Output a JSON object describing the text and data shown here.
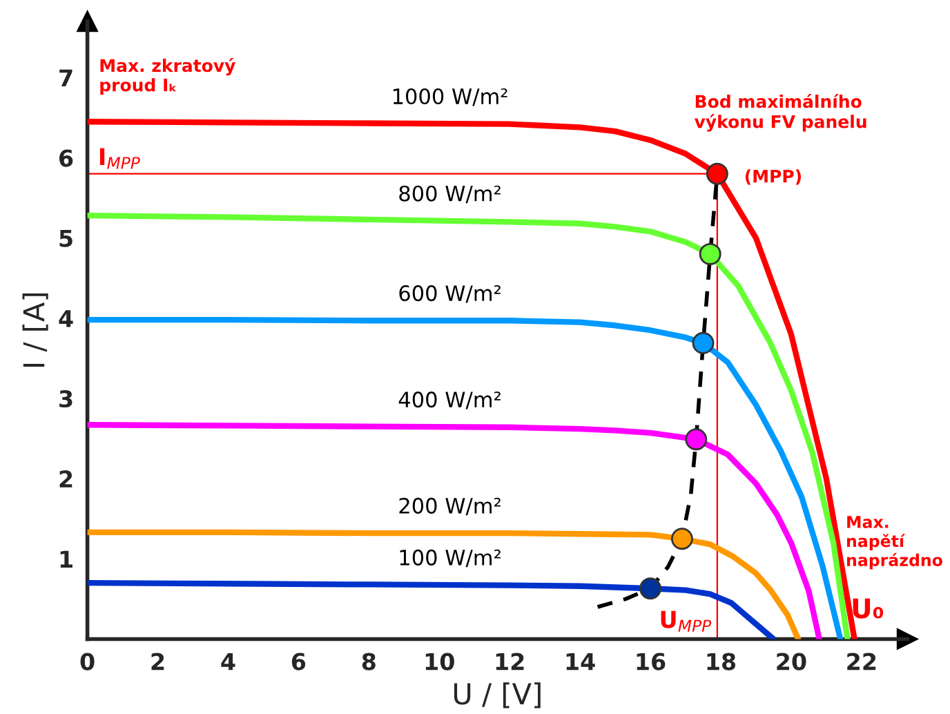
{
  "chart_data": {
    "type": "line",
    "xlabel": "U / [V]",
    "ylabel": "I / [A]",
    "xlim": [
      0,
      23.3
    ],
    "ylim": [
      0,
      7.7
    ],
    "xticks": [
      0,
      2,
      4,
      6,
      8,
      10,
      12,
      14,
      16,
      18,
      20,
      22
    ],
    "yticks": [
      1,
      2,
      3,
      4,
      5,
      6,
      7
    ],
    "grid": false,
    "legend": false,
    "marker": "none",
    "line_style": "solid",
    "series": [
      {
        "name": "1000 W/m²",
        "color": "#ff0000",
        "x": [
          0,
          4,
          8,
          12,
          14,
          15,
          16,
          17,
          17.9,
          19,
          20,
          21,
          21.8
        ],
        "values": [
          6.45,
          6.44,
          6.43,
          6.42,
          6.38,
          6.33,
          6.22,
          6.05,
          5.8,
          5.0,
          3.8,
          2.0,
          0
        ]
      },
      {
        "name": "800 W/m²",
        "color": "#66ff33",
        "x": [
          0,
          4,
          8,
          12,
          14,
          15,
          16,
          17,
          17.7,
          18.5,
          19.4,
          20,
          20.6,
          21.2,
          21.6
        ],
        "values": [
          5.28,
          5.26,
          5.23,
          5.2,
          5.18,
          5.14,
          5.08,
          4.95,
          4.8,
          4.4,
          3.7,
          3.1,
          2.33,
          1.2,
          0
        ]
      },
      {
        "name": "600 W/m²",
        "color": "#0099ff",
        "x": [
          0,
          4,
          8,
          12,
          14,
          15,
          16,
          17,
          17.5,
          18.2,
          19,
          19.7,
          20.3,
          20.9,
          21.4
        ],
        "values": [
          3.98,
          3.98,
          3.97,
          3.97,
          3.95,
          3.91,
          3.85,
          3.76,
          3.69,
          3.45,
          2.92,
          2.35,
          1.77,
          0.9,
          0
        ]
      },
      {
        "name": "400 W/m²",
        "color": "#ff00ff",
        "x": [
          0,
          4,
          8,
          12,
          14,
          15,
          16,
          17.3,
          18.2,
          19,
          19.6,
          20,
          20.5,
          20.8
        ],
        "values": [
          2.67,
          2.66,
          2.65,
          2.64,
          2.62,
          2.6,
          2.57,
          2.49,
          2.3,
          1.94,
          1.55,
          1.2,
          0.6,
          0
        ]
      },
      {
        "name": "200 W/m²",
        "color": "#ff9900",
        "x": [
          0,
          4,
          8,
          12,
          14,
          16,
          16.9,
          17.7,
          18.35,
          19,
          19.4,
          19.9,
          20.2
        ],
        "values": [
          1.33,
          1.33,
          1.32,
          1.32,
          1.31,
          1.3,
          1.25,
          1.18,
          1.03,
          0.82,
          0.62,
          0.3,
          0
        ]
      },
      {
        "name": "100 W/m²",
        "color": "#0033cc",
        "x": [
          0,
          4,
          8,
          12,
          14,
          16,
          17,
          17.7,
          18.3,
          18.7,
          19.1,
          19.5
        ],
        "values": [
          0.7,
          0.69,
          0.68,
          0.67,
          0.66,
          0.63,
          0.61,
          0.56,
          0.45,
          0.3,
          0.15,
          0
        ]
      },
      {
        "color": "#000000",
        "line_style": "dashed",
        "x": [
          14.5,
          15.3,
          16,
          16.5,
          16.9,
          17.15,
          17.3,
          17.5,
          17.7,
          17.9
        ],
        "values": [
          0.4,
          0.5,
          0.63,
          0.9,
          1.25,
          1.8,
          2.49,
          3.69,
          4.8,
          5.8
        ]
      },
      {
        "type": "scatter",
        "marker": "circle",
        "x": [
          17.9,
          17.7,
          17.5,
          17.3,
          16.9,
          16.0
        ],
        "values": [
          5.8,
          4.8,
          3.69,
          2.49,
          1.25,
          0.63
        ],
        "colors": [
          "#ff0000",
          "#66ff33",
          "#0099ff",
          "#ff00ff",
          "#ff9900",
          "#003399"
        ]
      }
    ],
    "ref_lines": [
      {
        "axis": "y",
        "value": 5.8,
        "label": "I$_{MPP}$",
        "color": "#ff0000"
      },
      {
        "axis": "x",
        "value": 17.9,
        "label": "U$_{MPP}$",
        "color": "#ff0000"
      }
    ],
    "annotations": [
      {
        "text": "Max. zkratový\nproud Iₖ",
        "x": 0,
        "y": 6.45
      },
      {
        "text": "Bod maximálního\nvýkonu FV panelu",
        "x": 17.9,
        "y": 5.8
      },
      {
        "text": "(MPP)",
        "x": 17.9,
        "y": 5.8
      },
      "Max.\nnapětí\nnaprázdno",
      {
        "text": "U₀",
        "x": 21.8,
        "y": 0
      }
    ]
  }
}
